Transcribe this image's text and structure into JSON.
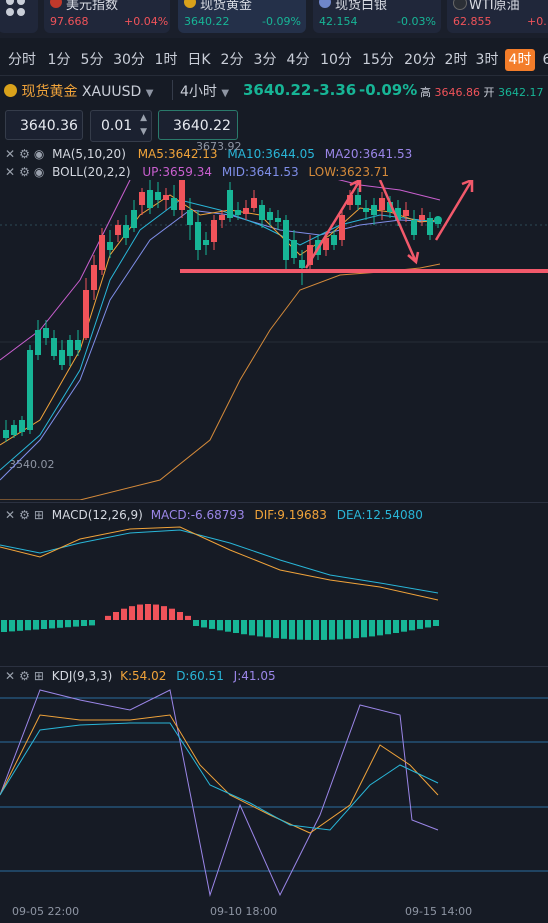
{
  "quotes": [
    {
      "name": "美元指数",
      "price": "97.668",
      "change": "+0.04%",
      "dir": "up",
      "icon_color": "#c0392b"
    },
    {
      "name": "现货黄金",
      "price": "3640.22",
      "change": "-0.09%",
      "dir": "dn",
      "icon_color": "#d9a21b"
    },
    {
      "name": "现货白银",
      "price": "42.154",
      "change": "-0.03%",
      "dir": "dn",
      "icon_color": "#6f86c9"
    },
    {
      "name": "WTI原油",
      "price": "62.855",
      "change": "+0.",
      "dir": "up",
      "icon_color": "#2b2f36"
    }
  ],
  "tabs": [
    "分时",
    "1分",
    "5分",
    "30分",
    "1时",
    "日K",
    "2分",
    "3分",
    "4分",
    "10分",
    "15分",
    "20分",
    "2时",
    "3时",
    "4时",
    "6"
  ],
  "active_tab": "4时",
  "instrument": {
    "name": "现货黄金",
    "symbol": "XAUUSD",
    "period": "4小时",
    "price": "3640.22",
    "change": "-3.36",
    "change_pct": "-0.09%",
    "high_label": "高",
    "high": "3646.86",
    "open_label": "开",
    "open": "3642.17"
  },
  "order": {
    "bid": "3640.36",
    "lot": "0.01",
    "ask": "3640.22"
  },
  "indicators": {
    "ma": {
      "label": "MA(5,10,20)",
      "ma5": "MA5:3642.13",
      "ma10": "MA10:3644.05",
      "ma20": "MA20:3641.53"
    },
    "boll": {
      "label": "BOLL(20,2,2)",
      "up": "UP:3659.34",
      "mid": "MID:3641.53",
      "low": "LOW:3623.71"
    },
    "macd": {
      "label": "MACD(12,26,9)",
      "macd": "MACD:-6.68793",
      "dif": "DIF:9.19683",
      "dea": "DEA:12.54080"
    },
    "kdj": {
      "label": "KDJ(9,3,3)",
      "k": "K:54.02",
      "d": "D:60.51",
      "j": "J:41.05"
    }
  },
  "chart": {
    "high_mark": "3673.92",
    "low_mark": "3540.02",
    "dates": [
      "09-05 22:00",
      "09-10 18:00",
      "09-15 14:00"
    ]
  },
  "colors": {
    "up": "#f0535a",
    "down": "#17b596",
    "accent": "#f37d2a",
    "ma5": "#f0a33a",
    "ma10": "#29b6d8",
    "ma20": "#9b86e8"
  }
}
